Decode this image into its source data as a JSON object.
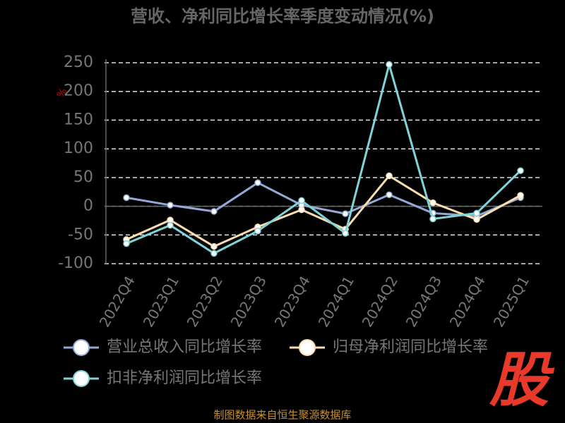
{
  "chart_data": {
    "type": "line",
    "title": "营收、净利同比增长率季度变动情况(%)",
    "y_label": "%",
    "categories": [
      "2022Q4",
      "2023Q1",
      "2023Q2",
      "2023Q3",
      "2023Q4",
      "2024Q1",
      "2024Q2",
      "2024Q3",
      "2024Q4",
      "2025Q1"
    ],
    "series": [
      {
        "name": "营业总收入同比增长率",
        "color": "#93a9d6",
        "values": [
          15,
          2,
          -9,
          41,
          2,
          -13,
          20,
          -12,
          -17,
          15
        ]
      },
      {
        "name": "归母净利润同比增长率",
        "color": "#fbdcae",
        "values": [
          -58,
          -24,
          -70,
          -36,
          -6,
          -40,
          53,
          6,
          -23,
          19
        ]
      },
      {
        "name": "扣非净利润同比增长率",
        "color": "#7fd4d8",
        "values": [
          -65,
          -33,
          -82,
          -43,
          10,
          -47,
          247,
          -22,
          -12,
          62
        ]
      }
    ],
    "ylim": [
      -100,
      250
    ],
    "yticks": [
      -100,
      -50,
      0,
      50,
      100,
      150,
      200,
      250
    ],
    "grid": true,
    "source": "制图数据来自恒生聚源数据库",
    "logo": "股"
  }
}
